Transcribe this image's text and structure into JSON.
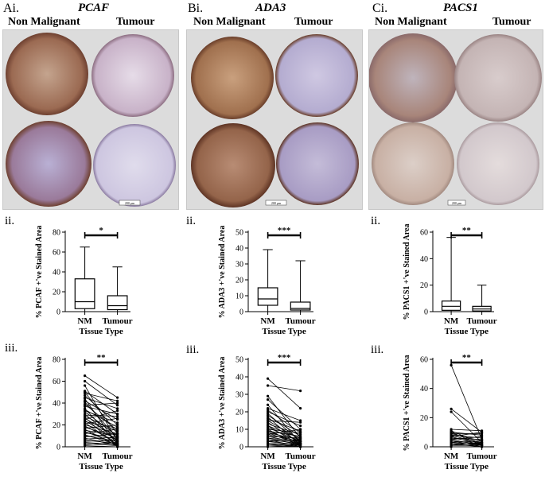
{
  "panels": [
    {
      "id": "a",
      "label": "Ai.",
      "gene": "PCAF",
      "col_left": "Non Malignant",
      "col_right": "Tumour",
      "scale_bar": "200 μm",
      "tint": "#9b6a52",
      "tint_light": "#c8b2c8",
      "box_label": "ii.",
      "pair_label": "iii."
    },
    {
      "id": "b",
      "label": "Bi.",
      "gene": "ADA3",
      "col_left": "Non Malignant",
      "col_right": "Tumour",
      "scale_bar": "200 μm",
      "tint": "#a0704e",
      "tint_light": "#b4acd0",
      "box_label": "ii.",
      "pair_label": "iii."
    },
    {
      "id": "c",
      "label": "Ci.",
      "gene": "PACS1",
      "col_left": "Non Malignant",
      "col_right": "Tumour",
      "scale_bar": "200 μm",
      "tint": "#a8857a",
      "tint_light": "#d2c8cc",
      "box_label": "ii.",
      "pair_label": "iii."
    }
  ],
  "chart_data": [
    {
      "type": "box",
      "panel": "Aii",
      "categories": [
        "NM",
        "Tumour"
      ],
      "xlabel": "Tissue Type",
      "ylabel": "% PCAF +'ve Stained Area",
      "ylim": [
        0,
        80
      ],
      "yticks": [
        0,
        20,
        40,
        60,
        80
      ],
      "boxes": [
        {
          "min": 0,
          "q1": 3,
          "median": 10,
          "q3": 33,
          "max": 65
        },
        {
          "min": 0,
          "q1": 2,
          "median": 6,
          "q3": 16,
          "max": 45
        }
      ],
      "significance": "*"
    },
    {
      "type": "box",
      "panel": "Bii",
      "categories": [
        "NM",
        "Tumour"
      ],
      "xlabel": "Tissue Type",
      "ylabel": "% ADA3 +'ve Stained Area",
      "ylim": [
        0,
        50
      ],
      "yticks": [
        0,
        10,
        20,
        30,
        40,
        50
      ],
      "boxes": [
        {
          "min": 0,
          "q1": 4,
          "median": 8,
          "q3": 15,
          "max": 39
        },
        {
          "min": 0,
          "q1": 1,
          "median": 2,
          "q3": 6,
          "max": 32
        }
      ],
      "significance": "***"
    },
    {
      "type": "box",
      "panel": "Cii",
      "categories": [
        "NM",
        "Tumour"
      ],
      "xlabel": "Tissue Type",
      "ylabel": "% PACS1 +'ve Stained Area",
      "ylim": [
        0,
        60
      ],
      "yticks": [
        0,
        20,
        40,
        60
      ],
      "boxes": [
        {
          "min": 0,
          "q1": 1,
          "median": 4,
          "q3": 8,
          "max": 56
        },
        {
          "min": 0,
          "q1": 0.5,
          "median": 2,
          "q3": 4,
          "max": 20
        }
      ],
      "significance": "**"
    },
    {
      "type": "line",
      "panel": "Aiii",
      "categories": [
        "NM",
        "Tumour"
      ],
      "xlabel": "Tissue Type",
      "ylabel": "% PCAF +'ve Stained Area",
      "ylim": [
        0,
        80
      ],
      "yticks": [
        0,
        20,
        40,
        60,
        80
      ],
      "significance": "**",
      "pairs": [
        [
          65,
          45
        ],
        [
          60,
          38
        ],
        [
          56,
          5
        ],
        [
          51,
          30
        ],
        [
          50,
          12
        ],
        [
          49,
          42
        ],
        [
          47,
          20
        ],
        [
          45,
          35
        ],
        [
          44,
          2
        ],
        [
          42,
          25
        ],
        [
          41,
          8
        ],
        [
          39,
          15
        ],
        [
          38,
          40
        ],
        [
          37,
          30
        ],
        [
          35,
          3
        ],
        [
          34,
          18
        ],
        [
          33,
          22
        ],
        [
          32,
          10
        ],
        [
          30,
          5
        ],
        [
          29,
          28
        ],
        [
          28,
          14
        ],
        [
          27,
          0
        ],
        [
          26,
          9
        ],
        [
          25,
          33
        ],
        [
          24,
          6
        ],
        [
          23,
          17
        ],
        [
          22,
          2
        ],
        [
          21,
          26
        ],
        [
          20,
          12
        ],
        [
          19,
          4
        ],
        [
          18,
          8
        ],
        [
          17,
          20
        ],
        [
          16,
          1
        ],
        [
          15,
          11
        ],
        [
          14,
          3
        ],
        [
          13,
          7
        ],
        [
          12,
          16
        ],
        [
          11,
          2
        ],
        [
          10,
          5
        ],
        [
          9,
          12
        ],
        [
          8,
          1
        ],
        [
          7,
          9
        ],
        [
          6,
          3
        ],
        [
          5,
          6
        ],
        [
          4,
          2
        ],
        [
          3,
          1
        ],
        [
          2,
          4
        ],
        [
          1,
          0
        ]
      ]
    },
    {
      "type": "line",
      "panel": "Biii",
      "categories": [
        "NM",
        "Tumour"
      ],
      "xlabel": "Tissue Type",
      "ylabel": "% ADA3 +'ve Stained Area",
      "ylim": [
        0,
        50
      ],
      "yticks": [
        0,
        10,
        20,
        30,
        40,
        50
      ],
      "significance": "***",
      "pairs": [
        [
          39,
          22
        ],
        [
          35,
          32
        ],
        [
          29,
          5
        ],
        [
          27,
          10
        ],
        [
          24,
          2
        ],
        [
          22,
          15
        ],
        [
          21,
          8
        ],
        [
          20,
          12
        ],
        [
          19,
          3
        ],
        [
          18,
          6
        ],
        [
          17,
          1
        ],
        [
          16,
          9
        ],
        [
          15,
          4
        ],
        [
          15,
          14
        ],
        [
          14,
          2
        ],
        [
          13,
          7
        ],
        [
          12,
          1
        ],
        [
          12,
          5
        ],
        [
          11,
          3
        ],
        [
          10,
          8
        ],
        [
          10,
          0
        ],
        [
          9,
          2
        ],
        [
          9,
          6
        ],
        [
          8,
          4
        ],
        [
          8,
          1
        ],
        [
          7,
          3
        ],
        [
          7,
          10
        ],
        [
          6,
          2
        ],
        [
          6,
          5
        ],
        [
          5,
          1
        ],
        [
          5,
          3
        ],
        [
          4,
          2
        ],
        [
          4,
          0
        ],
        [
          3,
          1
        ],
        [
          3,
          4
        ],
        [
          2,
          1
        ],
        [
          2,
          0
        ],
        [
          1,
          2
        ],
        [
          1,
          0
        ],
        [
          0,
          1
        ]
      ]
    },
    {
      "type": "line",
      "panel": "Ciii",
      "categories": [
        "NM",
        "Tumour"
      ],
      "xlabel": "Tissue Type",
      "ylabel": "% PACS1 +'ve Stained Area",
      "ylim": [
        0,
        60
      ],
      "yticks": [
        0,
        20,
        40,
        60
      ],
      "significance": "**",
      "pairs": [
        [
          56,
          5
        ],
        [
          26,
          10
        ],
        [
          24,
          3
        ],
        [
          12,
          11
        ],
        [
          11,
          2
        ],
        [
          10,
          8
        ],
        [
          10,
          1
        ],
        [
          9,
          4
        ],
        [
          9,
          9
        ],
        [
          8,
          2
        ],
        [
          8,
          6
        ],
        [
          7,
          1
        ],
        [
          7,
          10
        ],
        [
          6,
          3
        ],
        [
          6,
          5
        ],
        [
          5,
          1
        ],
        [
          5,
          7
        ],
        [
          4,
          2
        ],
        [
          4,
          0
        ],
        [
          3,
          4
        ],
        [
          3,
          1
        ],
        [
          2,
          2
        ],
        [
          2,
          0
        ],
        [
          1,
          3
        ],
        [
          1,
          1
        ],
        [
          0,
          0
        ]
      ]
    }
  ]
}
